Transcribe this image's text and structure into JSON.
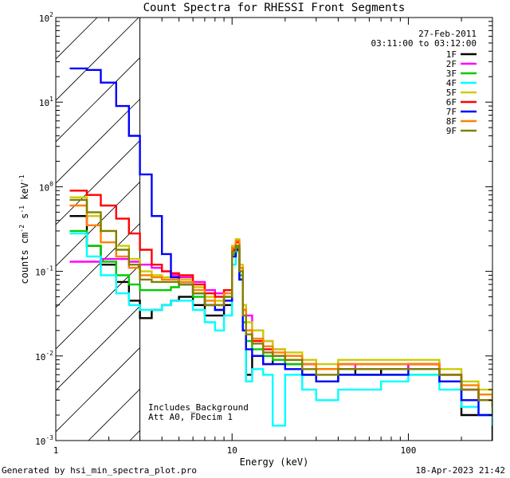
{
  "chart_data": {
    "type": "line",
    "title": "Count Spectra for RHESSI Front Segments",
    "xlabel": "Energy (keV)",
    "ylabel_base": "counts cm",
    "ylabel_exp1": "-2",
    "ylabel_mid": " s",
    "ylabel_exp2": "-1",
    "ylabel_end": " keV",
    "ylabel_exp3": "-1",
    "x_scale": "log",
    "y_scale": "log",
    "xlim": [
      1,
      300
    ],
    "ylim": [
      0.001,
      100
    ],
    "x_tick_labels": [
      {
        "value": 1,
        "label": "1"
      },
      {
        "value": 10,
        "label": "10"
      },
      {
        "value": 100,
        "label": "100"
      }
    ],
    "y_tick_labels": [
      {
        "value": 0.001,
        "base": "10",
        "exp": "-3"
      },
      {
        "value": 0.01,
        "base": "10",
        "exp": "-2"
      },
      {
        "value": 0.1,
        "base": "10",
        "exp": "-1"
      },
      {
        "value": 1,
        "base": "10",
        "exp": "0"
      },
      {
        "value": 10,
        "base": "10",
        "exp": "1"
      },
      {
        "value": 100,
        "base": "10",
        "exp": "2"
      }
    ],
    "date": "27-Feb-2011",
    "time_range": "03:11:00 to 03:12:00",
    "excluded_region_max_keV": 3,
    "annotations": [
      "Includes_Background",
      "Att A0, FDecim 1"
    ],
    "series": [
      {
        "name": "1F",
        "color": "#000000",
        "x": [
          1.2,
          1.5,
          1.8,
          2.2,
          2.6,
          3.0,
          3.5,
          4.0,
          4.5,
          5.0,
          6.0,
          7.0,
          8.0,
          9.0,
          10.0,
          10.5,
          11.0,
          11.5,
          12.0,
          13.0,
          15.0,
          17.0,
          20.0,
          25.0,
          30.0,
          40.0,
          50.0,
          70.0,
          100.0,
          150.0,
          200.0,
          250.0,
          300.0
        ],
        "y": [
          0.45,
          0.2,
          0.12,
          0.075,
          0.045,
          0.028,
          0.035,
          0.04,
          0.045,
          0.05,
          0.04,
          0.03,
          0.03,
          0.04,
          0.15,
          0.18,
          0.08,
          0.02,
          0.006,
          0.01,
          0.008,
          0.01,
          0.008,
          0.006,
          0.005,
          0.007,
          0.006,
          0.007,
          0.008,
          0.005,
          0.002,
          0.002,
          0.001
        ]
      },
      {
        "name": "2F",
        "color": "#ff00ff",
        "x": [
          1.2,
          1.5,
          1.8,
          2.2,
          2.6,
          3.0,
          3.5,
          4.0,
          4.5,
          5.0,
          6.0,
          7.0,
          8.0,
          9.0,
          10.0,
          10.5,
          11.0,
          11.5,
          12.0,
          13.0,
          15.0,
          17.0,
          20.0,
          25.0,
          30.0,
          40.0,
          50.0,
          70.0,
          100.0,
          150.0,
          200.0,
          250.0,
          300.0
        ],
        "y": [
          0.13,
          0.13,
          0.14,
          0.14,
          0.13,
          0.12,
          0.11,
          0.1,
          0.09,
          0.085,
          0.075,
          0.06,
          0.055,
          0.06,
          0.18,
          0.2,
          0.1,
          0.04,
          0.03,
          0.02,
          0.015,
          0.012,
          0.01,
          0.008,
          0.007,
          0.008,
          0.007,
          0.007,
          0.008,
          0.006,
          0.004,
          0.003,
          0.0025
        ]
      },
      {
        "name": "3F",
        "color": "#00cc00",
        "x": [
          1.2,
          1.5,
          1.8,
          2.2,
          2.6,
          3.0,
          3.5,
          4.0,
          4.5,
          5.0,
          6.0,
          7.0,
          8.0,
          9.0,
          10.0,
          10.5,
          11.0,
          11.5,
          12.0,
          13.0,
          15.0,
          17.0,
          20.0,
          25.0,
          30.0,
          40.0,
          50.0,
          70.0,
          100.0,
          150.0,
          200.0,
          250.0,
          300.0
        ],
        "y": [
          0.3,
          0.2,
          0.13,
          0.09,
          0.07,
          0.06,
          0.06,
          0.06,
          0.065,
          0.07,
          0.05,
          0.04,
          0.035,
          0.05,
          0.16,
          0.19,
          0.09,
          0.025,
          0.015,
          0.012,
          0.01,
          0.009,
          0.008,
          0.006,
          0.005,
          0.006,
          0.006,
          0.006,
          0.006,
          0.005,
          0.003,
          0.003,
          0.002
        ]
      },
      {
        "name": "4F",
        "color": "#00ffff",
        "x": [
          1.2,
          1.5,
          1.8,
          2.2,
          2.6,
          3.0,
          3.5,
          4.0,
          4.5,
          5.0,
          6.0,
          7.0,
          8.0,
          9.0,
          10.0,
          10.5,
          11.0,
          11.5,
          12.0,
          13.0,
          15.0,
          17.0,
          20.0,
          25.0,
          30.0,
          40.0,
          50.0,
          70.0,
          100.0,
          150.0,
          200.0,
          250.0,
          300.0
        ],
        "y": [
          0.28,
          0.15,
          0.09,
          0.055,
          0.04,
          0.035,
          0.035,
          0.04,
          0.045,
          0.045,
          0.035,
          0.025,
          0.02,
          0.03,
          0.12,
          0.17,
          0.08,
          0.02,
          0.005,
          0.007,
          0.006,
          0.0015,
          0.006,
          0.004,
          0.003,
          0.004,
          0.004,
          0.005,
          0.006,
          0.004,
          0.0025,
          0.002,
          0.0015
        ]
      },
      {
        "name": "5F",
        "color": "#cccc00",
        "x": [
          1.2,
          1.5,
          1.8,
          2.2,
          2.6,
          3.0,
          3.5,
          4.0,
          4.5,
          5.0,
          6.0,
          7.0,
          8.0,
          9.0,
          10.0,
          10.5,
          11.0,
          11.5,
          12.0,
          13.0,
          15.0,
          17.0,
          20.0,
          25.0,
          30.0,
          40.0,
          50.0,
          70.0,
          100.0,
          150.0,
          200.0,
          250.0,
          300.0
        ],
        "y": [
          0.75,
          0.45,
          0.3,
          0.2,
          0.14,
          0.1,
          0.09,
          0.085,
          0.085,
          0.08,
          0.065,
          0.05,
          0.045,
          0.06,
          0.2,
          0.24,
          0.12,
          0.04,
          0.025,
          0.02,
          0.015,
          0.012,
          0.011,
          0.009,
          0.008,
          0.009,
          0.009,
          0.009,
          0.009,
          0.007,
          0.005,
          0.004,
          0.003
        ]
      },
      {
        "name": "6F",
        "color": "#ff0000",
        "x": [
          1.2,
          1.5,
          1.8,
          2.2,
          2.6,
          3.0,
          3.5,
          4.0,
          4.5,
          5.0,
          6.0,
          7.0,
          8.0,
          9.0,
          10.0,
          10.5,
          11.0,
          11.5,
          12.0,
          13.0,
          15.0,
          17.0,
          20.0,
          25.0,
          30.0,
          40.0,
          50.0,
          70.0,
          100.0,
          150.0,
          200.0,
          250.0,
          300.0
        ],
        "y": [
          0.9,
          0.8,
          0.6,
          0.42,
          0.28,
          0.18,
          0.12,
          0.1,
          0.095,
          0.09,
          0.07,
          0.055,
          0.05,
          0.06,
          0.18,
          0.22,
          0.11,
          0.035,
          0.02,
          0.015,
          0.012,
          0.01,
          0.009,
          0.008,
          0.007,
          0.008,
          0.008,
          0.008,
          0.008,
          0.006,
          0.004,
          0.003,
          0.0025
        ]
      },
      {
        "name": "7F",
        "color": "#0000ff",
        "x": [
          1.2,
          1.5,
          1.8,
          2.2,
          2.6,
          3.0,
          3.5,
          4.0,
          4.5,
          5.0,
          6.0,
          7.0,
          8.0,
          9.0,
          10.0,
          10.5,
          11.0,
          11.5,
          12.0,
          13.0,
          15.0,
          17.0,
          20.0,
          25.0,
          30.0,
          40.0,
          50.0,
          70.0,
          100.0,
          150.0,
          200.0,
          250.0,
          300.0
        ],
        "y": [
          25,
          24,
          17,
          9,
          4,
          1.4,
          0.45,
          0.16,
          0.085,
          0.07,
          0.055,
          0.04,
          0.035,
          0.045,
          0.15,
          0.18,
          0.08,
          0.02,
          0.012,
          0.01,
          0.008,
          0.008,
          0.007,
          0.006,
          0.005,
          0.006,
          0.006,
          0.006,
          0.007,
          0.005,
          0.003,
          0.002,
          0.002
        ]
      },
      {
        "name": "8F",
        "color": "#ff8000",
        "x": [
          1.2,
          1.5,
          1.8,
          2.2,
          2.6,
          3.0,
          3.5,
          4.0,
          4.5,
          5.0,
          6.0,
          7.0,
          8.0,
          9.0,
          10.0,
          10.5,
          11.0,
          11.5,
          12.0,
          13.0,
          15.0,
          17.0,
          20.0,
          25.0,
          30.0,
          40.0,
          50.0,
          70.0,
          100.0,
          150.0,
          200.0,
          250.0,
          300.0
        ],
        "y": [
          0.6,
          0.35,
          0.22,
          0.15,
          0.11,
          0.09,
          0.085,
          0.08,
          0.08,
          0.075,
          0.06,
          0.045,
          0.04,
          0.055,
          0.19,
          0.23,
          0.11,
          0.035,
          0.02,
          0.016,
          0.013,
          0.011,
          0.01,
          0.008,
          0.007,
          0.008,
          0.008,
          0.008,
          0.008,
          0.006,
          0.0045,
          0.0035,
          0.0028
        ]
      },
      {
        "name": "9F",
        "color": "#808000",
        "x": [
          1.2,
          1.5,
          1.8,
          2.2,
          2.6,
          3.0,
          3.5,
          4.0,
          4.5,
          5.0,
          6.0,
          7.0,
          8.0,
          9.0,
          10.0,
          10.5,
          11.0,
          11.5,
          12.0,
          13.0,
          15.0,
          17.0,
          20.0,
          25.0,
          30.0,
          40.0,
          50.0,
          70.0,
          100.0,
          150.0,
          200.0,
          250.0,
          300.0
        ],
        "y": [
          0.7,
          0.5,
          0.3,
          0.18,
          0.12,
          0.08,
          0.075,
          0.075,
          0.075,
          0.07,
          0.055,
          0.04,
          0.04,
          0.05,
          0.17,
          0.2,
          0.1,
          0.03,
          0.018,
          0.014,
          0.011,
          0.01,
          0.009,
          0.007,
          0.006,
          0.007,
          0.007,
          0.007,
          0.007,
          0.006,
          0.004,
          0.003,
          0.0025
        ]
      }
    ]
  },
  "footer": {
    "generated_by": "Generated by hsi_min_spectra_plot.pro",
    "timestamp": "18-Apr-2023 21:42"
  }
}
